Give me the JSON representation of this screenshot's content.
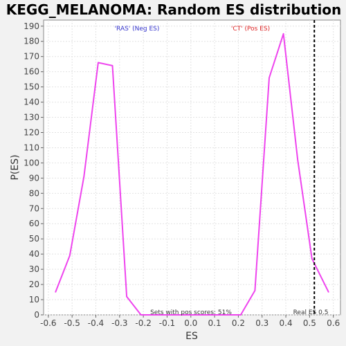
{
  "chart_data": {
    "type": "line",
    "title": "KEGG_MELANOMA: Random ES distribution",
    "xlabel": "ES",
    "ylabel": "P(ES)",
    "xlim": [
      -0.62,
      0.63
    ],
    "ylim": [
      0,
      194
    ],
    "x_ticks": [
      -0.6,
      -0.5,
      -0.4,
      -0.3,
      -0.2,
      -0.1,
      0.0,
      0.1,
      0.2,
      0.3,
      0.4,
      0.5,
      0.6
    ],
    "x_tick_labels": [
      "-0.6",
      "-0.5",
      "-0.4",
      "-0.3",
      "-0.2",
      "-0.1",
      "0.0",
      "0.1",
      "0.2",
      "0.3",
      "0.4",
      "0.5",
      "0.6"
    ],
    "y_ticks": [
      0,
      10,
      20,
      30,
      40,
      50,
      60,
      70,
      80,
      90,
      100,
      110,
      120,
      130,
      140,
      150,
      160,
      170,
      180,
      190
    ],
    "y_tick_labels": [
      "0",
      "10",
      "20",
      "30",
      "40",
      "50",
      "60",
      "70",
      "80",
      "90",
      "100",
      "110",
      "120",
      "130",
      "140",
      "150",
      "160",
      "170",
      "180",
      "190"
    ],
    "grid": true,
    "series": [
      {
        "color": "#ee44ee",
        "x": [
          -0.57,
          -0.51,
          -0.45,
          -0.39,
          -0.33,
          -0.27,
          -0.21,
          -0.15,
          -0.09,
          -0.03,
          0.03,
          0.09,
          0.15,
          0.21,
          0.27,
          0.33,
          0.39,
          0.45,
          0.51,
          0.58
        ],
        "y": [
          15,
          39,
          91,
          166,
          164,
          12,
          0,
          0,
          0,
          0,
          0,
          0,
          0,
          0,
          16,
          156,
          185,
          102,
          37,
          15
        ]
      }
    ],
    "real_es": {
      "x": 0.52,
      "label": "Real ES 0.5",
      "color": "#000000"
    },
    "annotations": {
      "neg_label": "'RAS' (Neg ES)",
      "neg_color": "#3333cc",
      "pos_label": "'CT' (Pos ES)",
      "pos_color": "#dd2222",
      "pos_fraction_label": "Sets with pos scores: 51%"
    }
  }
}
